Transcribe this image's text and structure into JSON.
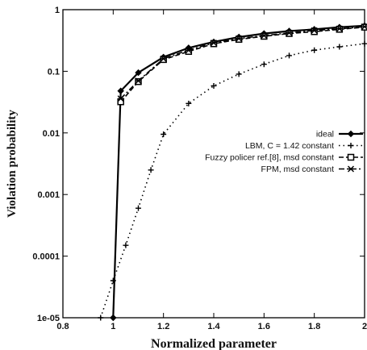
{
  "chart_data": {
    "type": "line",
    "title": "",
    "xlabel": "Normalized parameter",
    "ylabel": "Violation probability",
    "xlim": [
      0.8,
      2
    ],
    "ylim": [
      1e-05,
      1
    ],
    "yscale": "log",
    "x_ticks": [
      0.8,
      1,
      1.2,
      1.4,
      1.6,
      1.8,
      2
    ],
    "x_tick_labels": [
      "0.8",
      "1",
      "1.2",
      "1.4",
      "1.6",
      "1.8",
      "2"
    ],
    "y_ticks": [
      1e-05,
      0.0001,
      0.001,
      0.01,
      0.1,
      1
    ],
    "y_tick_labels": [
      "1e-05",
      "0.0001",
      "0.001",
      "0.01",
      "0.1",
      "1"
    ],
    "grid": false,
    "legend_position": "right",
    "series": [
      {
        "name": "ideal",
        "color": "#000000",
        "style": "solid",
        "marker": "diamond",
        "x": [
          1.0,
          1.03,
          1.1,
          1.2,
          1.3,
          1.4,
          1.5,
          1.6,
          1.7,
          1.8,
          1.9,
          2.0
        ],
        "y": [
          1e-05,
          0.048,
          0.095,
          0.17,
          0.24,
          0.3,
          0.36,
          0.41,
          0.45,
          0.48,
          0.52,
          0.55
        ]
      },
      {
        "name": "LBM, C = 1.42 constant",
        "color": "#000000",
        "style": "dotted",
        "marker": "plus",
        "x": [
          0.95,
          1.0,
          1.05,
          1.1,
          1.15,
          1.2,
          1.3,
          1.4,
          1.5,
          1.6,
          1.7,
          1.8,
          1.9,
          2.0
        ],
        "y": [
          1e-05,
          4e-05,
          0.00015,
          0.0006,
          0.0025,
          0.0095,
          0.03,
          0.058,
          0.09,
          0.13,
          0.18,
          0.22,
          0.25,
          0.28
        ]
      },
      {
        "name": "Fuzzy policer ref.[8], msd constant",
        "color": "#000000",
        "style": "dashed",
        "marker": "square",
        "x": [
          1.03,
          1.1,
          1.2,
          1.3,
          1.4,
          1.5,
          1.6,
          1.7,
          1.8,
          1.9,
          2.0
        ],
        "y": [
          0.032,
          0.068,
          0.155,
          0.21,
          0.28,
          0.33,
          0.37,
          0.41,
          0.44,
          0.48,
          0.52
        ]
      },
      {
        "name": "FPM, msd constant",
        "color": "#000000",
        "style": "dashdot",
        "marker": "cross",
        "x": [
          1.03,
          1.1,
          1.2,
          1.3,
          1.4,
          1.5,
          1.6,
          1.7,
          1.8,
          1.9,
          2.0
        ],
        "y": [
          0.036,
          0.07,
          0.16,
          0.22,
          0.29,
          0.34,
          0.38,
          0.42,
          0.46,
          0.49,
          0.53
        ]
      }
    ]
  }
}
